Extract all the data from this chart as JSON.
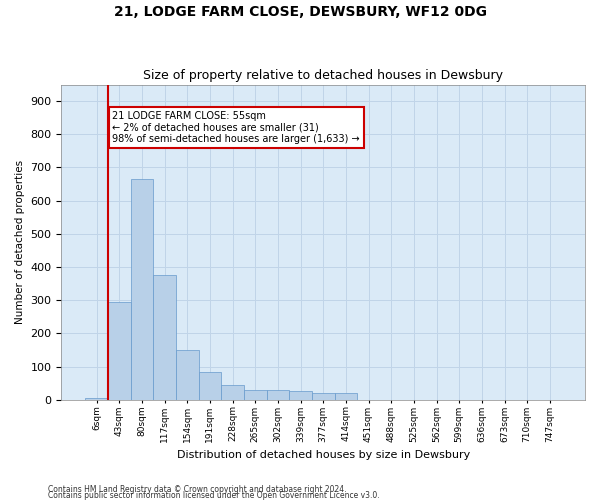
{
  "title": "21, LODGE FARM CLOSE, DEWSBURY, WF12 0DG",
  "subtitle": "Size of property relative to detached houses in Dewsbury",
  "xlabel": "Distribution of detached houses by size in Dewsbury",
  "ylabel": "Number of detached properties",
  "bar_color": "#b8d0e8",
  "bar_edge_color": "#6699cc",
  "grid_color": "#c0d4e8",
  "background_color": "#daeaf7",
  "marker_color": "#cc0000",
  "categories": [
    "6sqm",
    "43sqm",
    "80sqm",
    "117sqm",
    "154sqm",
    "191sqm",
    "228sqm",
    "265sqm",
    "302sqm",
    "339sqm",
    "377sqm",
    "414sqm",
    "451sqm",
    "488sqm",
    "525sqm",
    "562sqm",
    "599sqm",
    "636sqm",
    "673sqm",
    "710sqm",
    "747sqm"
  ],
  "values": [
    5,
    295,
    665,
    375,
    150,
    85,
    45,
    30,
    28,
    25,
    20,
    20,
    0,
    0,
    0,
    0,
    0,
    0,
    0,
    0,
    0
  ],
  "ylim": [
    0,
    950
  ],
  "yticks": [
    0,
    100,
    200,
    300,
    400,
    500,
    600,
    700,
    800,
    900
  ],
  "property_bin_index": 1,
  "annotation_title": "21 LODGE FARM CLOSE: 55sqm",
  "annotation_line1": "← 2% of detached houses are smaller (31)",
  "annotation_line2": "98% of semi-detached houses are larger (1,633) →",
  "footnote1": "Contains HM Land Registry data © Crown copyright and database right 2024.",
  "footnote2": "Contains public sector information licensed under the Open Government Licence v3.0."
}
